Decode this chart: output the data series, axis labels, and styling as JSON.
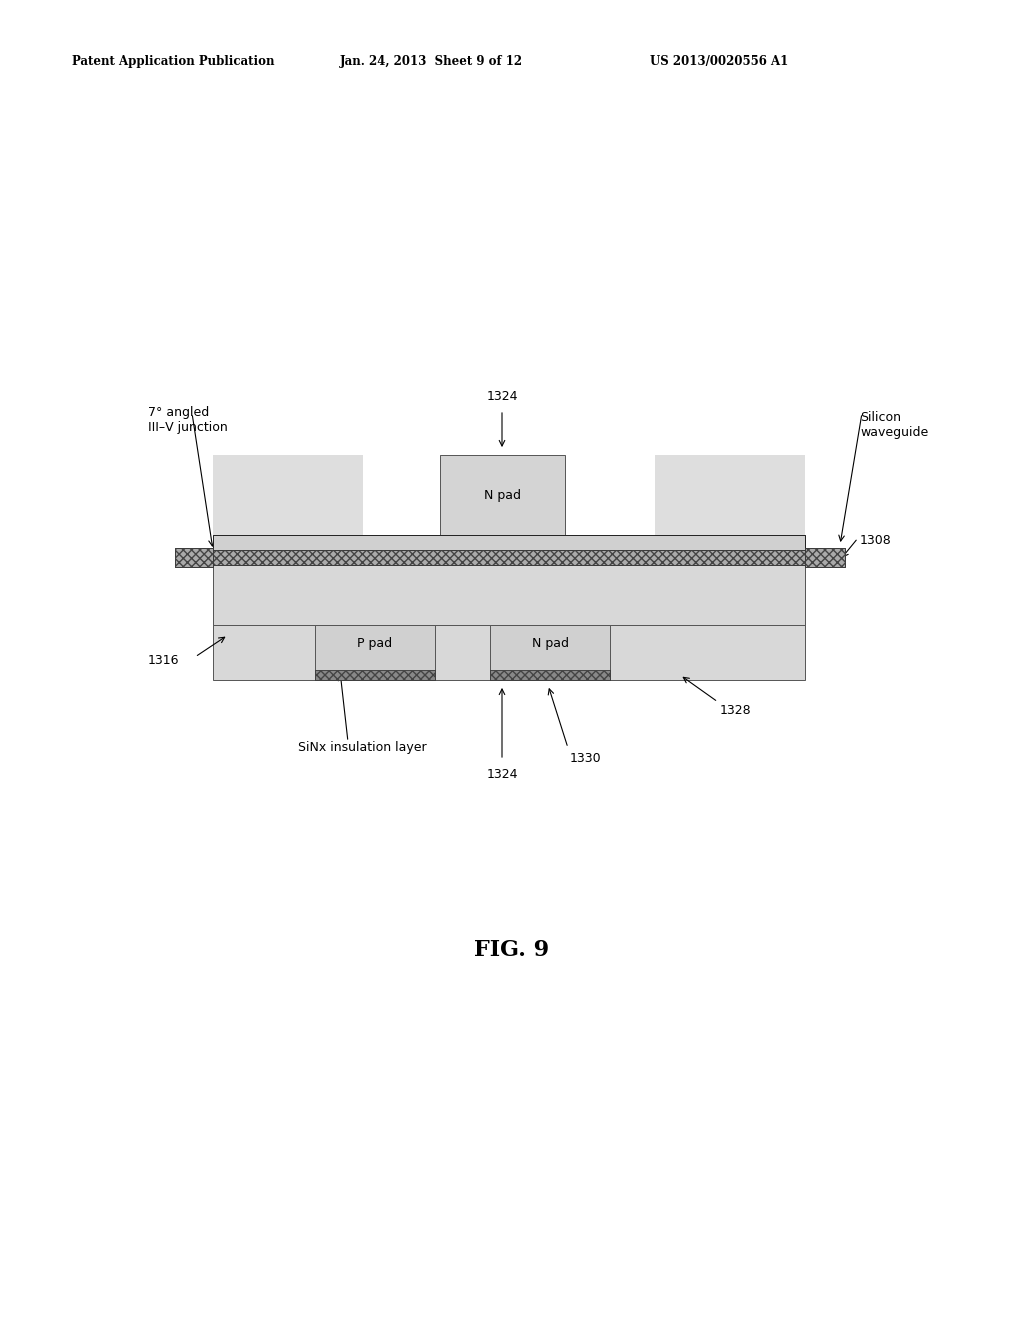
{
  "bg_color": "#ffffff",
  "header_left": "Patent Application Publication",
  "header_mid": "Jan. 24, 2013  Sheet 9 of 12",
  "header_right": "US 2013/0020556 A1",
  "fig_label": "FIG. 9",
  "colors": {
    "light_gray": "#cccccc",
    "light_gray2": "#d8d8d8",
    "medium_gray": "#b0b0b0",
    "dark_gray": "#888888",
    "border": "#555555",
    "border_dark": "#222222",
    "white": "#ffffff",
    "very_light_gray": "#e2e2e2",
    "dot_fill": "#c0c0c0"
  },
  "labels": {
    "1324_top": "1324",
    "silicon_waveguide": "Silicon\nwaveguide",
    "1308": "1308",
    "7deg": "7° angled\nIII–V junction",
    "1316": "1316",
    "P_pad": "P pad",
    "N_pad_lower": "N pad",
    "N_pad_upper": "N pad",
    "SiNx": "SiNx insulation layer",
    "1324_bot": "1324",
    "1330": "1330",
    "1328": "1328"
  }
}
